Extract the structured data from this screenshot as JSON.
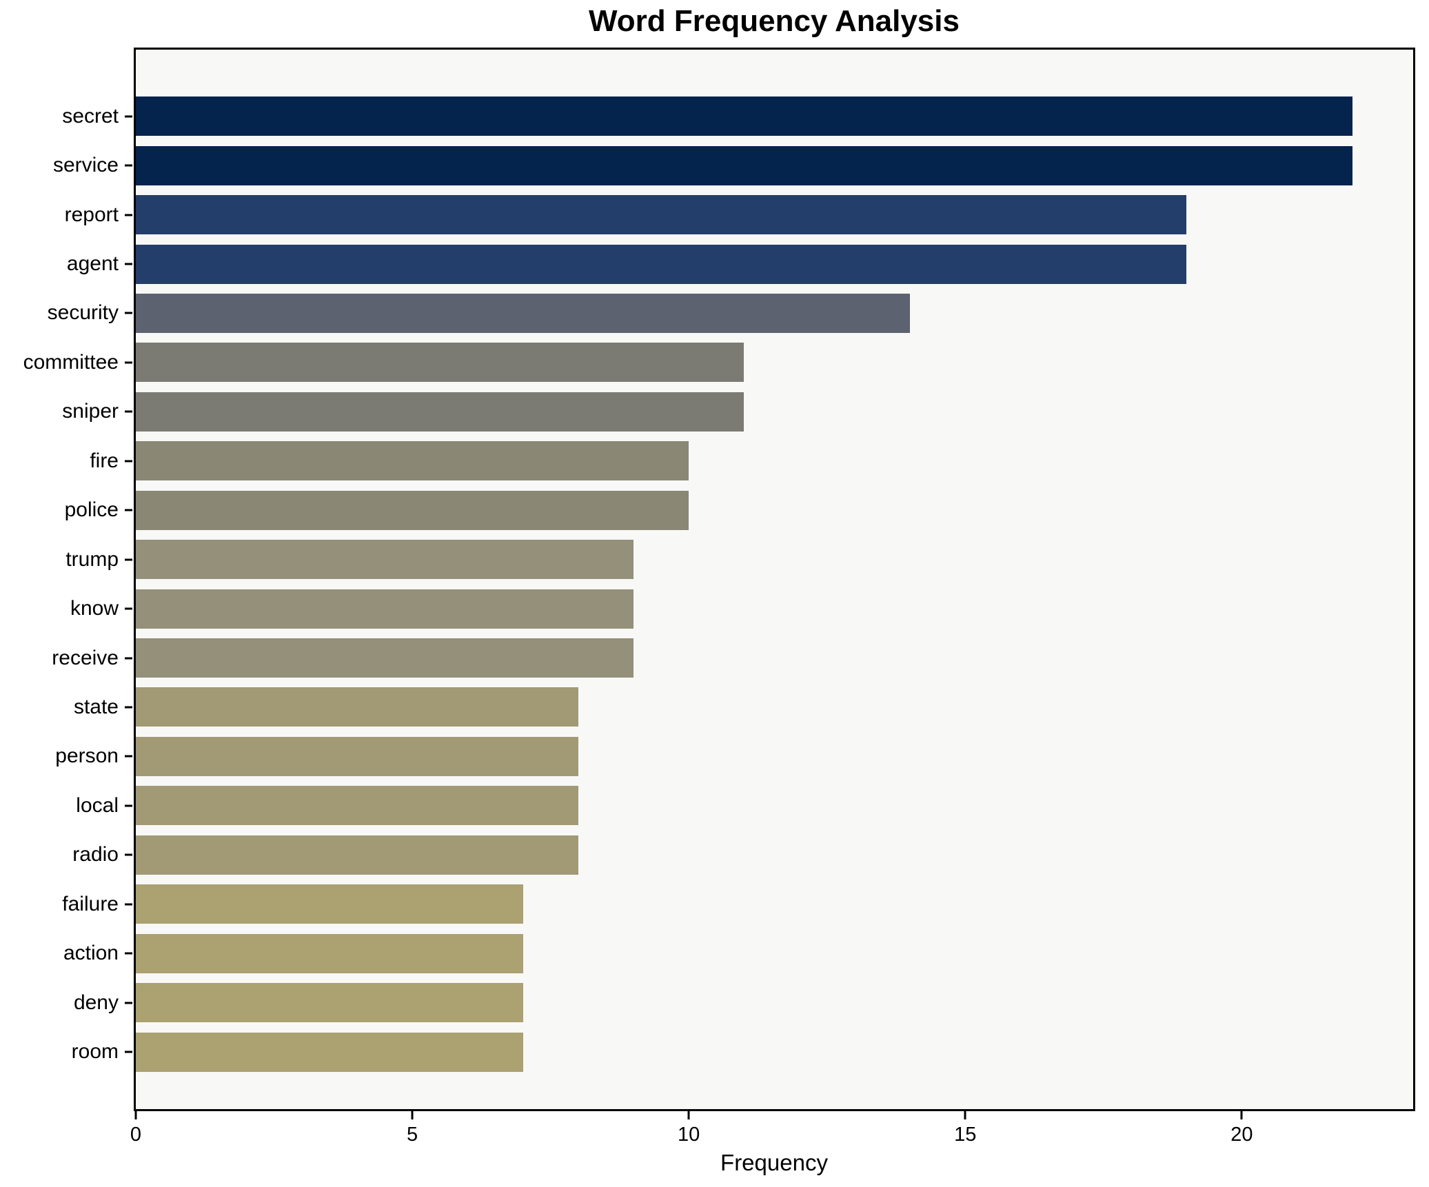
{
  "chart_data": {
    "type": "bar",
    "orientation": "horizontal",
    "title": "Word Frequency Analysis",
    "xlabel": "Frequency",
    "ylabel": "",
    "categories": [
      "secret",
      "service",
      "report",
      "agent",
      "security",
      "committee",
      "sniper",
      "fire",
      "police",
      "trump",
      "know",
      "receive",
      "state",
      "person",
      "local",
      "radio",
      "failure",
      "action",
      "deny",
      "room"
    ],
    "values": [
      22,
      22,
      19,
      19,
      14,
      11,
      11,
      10,
      10,
      9,
      9,
      9,
      8,
      8,
      8,
      8,
      7,
      7,
      7,
      7
    ],
    "x_ticks": [
      0,
      5,
      10,
      15,
      20
    ],
    "xlim": [
      0,
      23.1
    ],
    "grid": false,
    "legend": null,
    "bar_colors": [
      "#04234d",
      "#04234d",
      "#243e6b",
      "#243e6b",
      "#5c6270",
      "#7c7b73",
      "#7c7b73",
      "#8a8775",
      "#8a8775",
      "#949079",
      "#949079",
      "#949079",
      "#a29a75",
      "#a29a75",
      "#a29a75",
      "#a29a75",
      "#aba171",
      "#aba171",
      "#aba171",
      "#aba171"
    ],
    "colors": {
      "figure_background": "#ffffff",
      "axes_background": "#f8f8f7",
      "spine": "#000000",
      "text": "#000000"
    }
  }
}
